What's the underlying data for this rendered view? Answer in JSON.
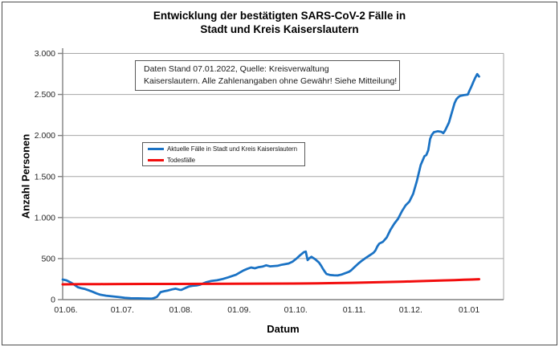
{
  "title": {
    "line1": "Entwicklung der bestätigten SARS-CoV-2 Fälle in",
    "line2": "Stadt und Kreis Kaiserslautern"
  },
  "annotation": {
    "line1": "Daten Stand 07.01.2022, Quelle: Kreisverwaltung",
    "line2": "Kaiserslautern. Alle Zahlenangaben ohne Gewähr! Siehe Mitteilung!"
  },
  "colors": {
    "blue_series": "#1a72c4",
    "red_series": "#f20d0d",
    "gridline": "#a6a6a6",
    "axis": "#808080",
    "tick_label": "#262626",
    "figure_border": "#4d4d4d"
  },
  "chart_data": {
    "type": "line",
    "title": "Entwicklung der bestätigten SARS-CoV-2 Fälle in Stadt und Kreis Kaiserslautern",
    "xlabel": "Datum",
    "ylabel": "Anzahl Personen",
    "x_unit": "days since 01.06.2021",
    "xlim": [
      0,
      234
    ],
    "ylim": [
      0,
      3000
    ],
    "grid": "horizontal",
    "legend_position": "inside upper-left",
    "x_ticks": [
      {
        "day": 0,
        "label": "01.06."
      },
      {
        "day": 30,
        "label": "01.07."
      },
      {
        "day": 61,
        "label": "01.08."
      },
      {
        "day": 92,
        "label": "01.09."
      },
      {
        "day": 122,
        "label": "01.10."
      },
      {
        "day": 153,
        "label": "01.11."
      },
      {
        "day": 183,
        "label": "01.12."
      },
      {
        "day": 214,
        "label": "01.01"
      }
    ],
    "y_ticks": [
      {
        "value": 0,
        "label": "0"
      },
      {
        "value": 500,
        "label": "500"
      },
      {
        "value": 1000,
        "label": "1.000"
      },
      {
        "value": 1500,
        "label": "1.500"
      },
      {
        "value": 2000,
        "label": "2.000"
      },
      {
        "value": 2500,
        "label": "2.500"
      },
      {
        "value": 3000,
        "label": "3.000"
      }
    ],
    "series": [
      {
        "name": "Aktuelle Fälle in Stadt und Kreis Kaiserslautern",
        "color": "#1a72c4",
        "stroke_width": 2.75,
        "points": [
          [
            0,
            245
          ],
          [
            2,
            235
          ],
          [
            4,
            212
          ],
          [
            6,
            185
          ],
          [
            8,
            152
          ],
          [
            10,
            138
          ],
          [
            12,
            128
          ],
          [
            14,
            112
          ],
          [
            16,
            95
          ],
          [
            18,
            75
          ],
          [
            20,
            60
          ],
          [
            23,
            48
          ],
          [
            26,
            40
          ],
          [
            30,
            30
          ],
          [
            33,
            22
          ],
          [
            36,
            18
          ],
          [
            40,
            16
          ],
          [
            44,
            14
          ],
          [
            47,
            12
          ],
          [
            48,
            16
          ],
          [
            50,
            32
          ],
          [
            51,
            62
          ],
          [
            52,
            92
          ],
          [
            54,
            103
          ],
          [
            56,
            112
          ],
          [
            58,
            124
          ],
          [
            60,
            133
          ],
          [
            62,
            120
          ],
          [
            63,
            118
          ],
          [
            65,
            140
          ],
          [
            67,
            160
          ],
          [
            69,
            168
          ],
          [
            71,
            172
          ],
          [
            73,
            182
          ],
          [
            76,
            210
          ],
          [
            79,
            228
          ],
          [
            82,
            236
          ],
          [
            85,
            252
          ],
          [
            88,
            272
          ],
          [
            90,
            288
          ],
          [
            92,
            302
          ],
          [
            94,
            330
          ],
          [
            96,
            355
          ],
          [
            98,
            375
          ],
          [
            100,
            392
          ],
          [
            102,
            382
          ],
          [
            104,
            395
          ],
          [
            106,
            402
          ],
          [
            108,
            418
          ],
          [
            110,
            405
          ],
          [
            112,
            408
          ],
          [
            114,
            412
          ],
          [
            116,
            424
          ],
          [
            118,
            432
          ],
          [
            120,
            440
          ],
          [
            122,
            462
          ],
          [
            124,
            498
          ],
          [
            126,
            540
          ],
          [
            128,
            578
          ],
          [
            129,
            585
          ],
          [
            130,
            482
          ],
          [
            131,
            505
          ],
          [
            132,
            522
          ],
          [
            134,
            492
          ],
          [
            136,
            452
          ],
          [
            137,
            420
          ],
          [
            138,
            380
          ],
          [
            139,
            345
          ],
          [
            140,
            312
          ],
          [
            142,
            300
          ],
          [
            144,
            297
          ],
          [
            146,
            295
          ],
          [
            148,
            305
          ],
          [
            150,
            322
          ],
          [
            152,
            340
          ],
          [
            153,
            355
          ],
          [
            155,
            398
          ],
          [
            157,
            440
          ],
          [
            159,
            478
          ],
          [
            161,
            510
          ],
          [
            163,
            540
          ],
          [
            165,
            572
          ],
          [
            166,
            600
          ],
          [
            167,
            648
          ],
          [
            168,
            682
          ],
          [
            170,
            705
          ],
          [
            172,
            758
          ],
          [
            174,
            852
          ],
          [
            176,
            925
          ],
          [
            178,
            985
          ],
          [
            180,
            1075
          ],
          [
            182,
            1148
          ],
          [
            184,
            1195
          ],
          [
            186,
            1288
          ],
          [
            188,
            1448
          ],
          [
            190,
            1640
          ],
          [
            192,
            1748
          ],
          [
            193,
            1762
          ],
          [
            194,
            1820
          ],
          [
            195,
            1958
          ],
          [
            196,
            2010
          ],
          [
            197,
            2040
          ],
          [
            199,
            2052
          ],
          [
            201,
            2045
          ],
          [
            202,
            2028
          ],
          [
            203,
            2062
          ],
          [
            205,
            2158
          ],
          [
            207,
            2318
          ],
          [
            208,
            2395
          ],
          [
            209,
            2442
          ],
          [
            210,
            2468
          ],
          [
            211,
            2482
          ],
          [
            213,
            2492
          ],
          [
            215,
            2498
          ],
          [
            216,
            2552
          ],
          [
            217,
            2600
          ],
          [
            218,
            2655
          ],
          [
            219,
            2705
          ],
          [
            220,
            2748
          ],
          [
            221,
            2718
          ]
        ]
      },
      {
        "name": "Todesfälle",
        "color": "#f20d0d",
        "stroke_width": 3,
        "points": [
          [
            0,
            186
          ],
          [
            10,
            188
          ],
          [
            20,
            189
          ],
          [
            30,
            190
          ],
          [
            45,
            191
          ],
          [
            60,
            191
          ],
          [
            75,
            192
          ],
          [
            90,
            193
          ],
          [
            105,
            195
          ],
          [
            122,
            196
          ],
          [
            135,
            199
          ],
          [
            145,
            202
          ],
          [
            153,
            205
          ],
          [
            160,
            208
          ],
          [
            167,
            211
          ],
          [
            174,
            215
          ],
          [
            181,
            219
          ],
          [
            188,
            224
          ],
          [
            195,
            229
          ],
          [
            202,
            234
          ],
          [
            208,
            238
          ],
          [
            213,
            242
          ],
          [
            217,
            245
          ],
          [
            221,
            249
          ]
        ]
      }
    ]
  }
}
